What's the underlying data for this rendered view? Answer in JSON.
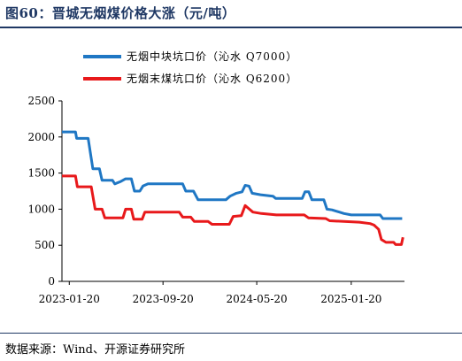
{
  "figure_title": "图60：晋城无烟煤价格大涨（元/吨）",
  "source_note": "数据来源：Wind、开源证券研究所",
  "colors": {
    "accent": "#1f3864",
    "series_blue": "#1f77c4",
    "series_red": "#e8191b"
  },
  "chart_data": {
    "type": "line",
    "title": "",
    "xlabel": "",
    "ylabel": "",
    "ylim": [
      0,
      2500
    ],
    "xlim": [
      "2023-01-01",
      "2025-06-07"
    ],
    "yticks": [
      0,
      500,
      1000,
      1500,
      2000,
      2500
    ],
    "xticks": [
      "2023-01-20",
      "2023-09-20",
      "2024-05-20",
      "2025-01-20"
    ],
    "grid": false,
    "legend_position": "top-right",
    "series": [
      {
        "name": "无烟中块坑口价（沁水 Q7000）",
        "color": "#1f77c4",
        "points": [
          [
            "2023-01-01",
            2070
          ],
          [
            "2023-02-05",
            2070
          ],
          [
            "2023-02-08",
            1980
          ],
          [
            "2023-03-10",
            1980
          ],
          [
            "2023-03-22",
            1560
          ],
          [
            "2023-04-08",
            1560
          ],
          [
            "2023-04-15",
            1400
          ],
          [
            "2023-05-12",
            1400
          ],
          [
            "2023-05-18",
            1350
          ],
          [
            "2023-06-01",
            1380
          ],
          [
            "2023-06-15",
            1420
          ],
          [
            "2023-06-30",
            1420
          ],
          [
            "2023-07-08",
            1250
          ],
          [
            "2023-07-22",
            1250
          ],
          [
            "2023-07-30",
            1320
          ],
          [
            "2023-08-12",
            1350
          ],
          [
            "2023-11-10",
            1350
          ],
          [
            "2023-11-18",
            1250
          ],
          [
            "2023-12-08",
            1250
          ],
          [
            "2023-12-20",
            1130
          ],
          [
            "2024-03-01",
            1130
          ],
          [
            "2024-03-12",
            1180
          ],
          [
            "2024-03-28",
            1220
          ],
          [
            "2024-04-12",
            1240
          ],
          [
            "2024-04-20",
            1330
          ],
          [
            "2024-04-30",
            1320
          ],
          [
            "2024-05-08",
            1220
          ],
          [
            "2024-05-30",
            1200
          ],
          [
            "2024-07-01",
            1180
          ],
          [
            "2024-07-08",
            1150
          ],
          [
            "2024-09-15",
            1150
          ],
          [
            "2024-09-22",
            1240
          ],
          [
            "2024-10-02",
            1240
          ],
          [
            "2024-10-10",
            1130
          ],
          [
            "2024-11-10",
            1130
          ],
          [
            "2024-11-18",
            1000
          ],
          [
            "2024-12-01",
            990
          ],
          [
            "2025-01-01",
            940
          ],
          [
            "2025-01-20",
            920
          ],
          [
            "2025-04-05",
            920
          ],
          [
            "2025-04-12",
            870
          ],
          [
            "2025-06-01",
            870
          ]
        ]
      },
      {
        "name": "无烟末煤坑口价（沁水 Q6200）",
        "color": "#e8191b",
        "points": [
          [
            "2023-01-01",
            1460
          ],
          [
            "2023-02-05",
            1460
          ],
          [
            "2023-02-10",
            1310
          ],
          [
            "2023-03-18",
            1310
          ],
          [
            "2023-03-28",
            1000
          ],
          [
            "2023-04-15",
            1000
          ],
          [
            "2023-04-22",
            880
          ],
          [
            "2023-06-08",
            880
          ],
          [
            "2023-06-15",
            1000
          ],
          [
            "2023-06-30",
            1000
          ],
          [
            "2023-07-06",
            860
          ],
          [
            "2023-07-28",
            860
          ],
          [
            "2023-08-04",
            960
          ],
          [
            "2023-10-05",
            960
          ],
          [
            "2023-11-01",
            960
          ],
          [
            "2023-11-10",
            890
          ],
          [
            "2023-12-01",
            890
          ],
          [
            "2023-12-10",
            830
          ],
          [
            "2024-01-15",
            830
          ],
          [
            "2024-01-25",
            790
          ],
          [
            "2024-03-10",
            790
          ],
          [
            "2024-03-20",
            900
          ],
          [
            "2024-04-10",
            910
          ],
          [
            "2024-04-20",
            1050
          ],
          [
            "2024-05-01",
            1000
          ],
          [
            "2024-05-10",
            960
          ],
          [
            "2024-06-01",
            940
          ],
          [
            "2024-07-10",
            920
          ],
          [
            "2024-09-20",
            920
          ],
          [
            "2024-10-01",
            880
          ],
          [
            "2024-11-15",
            870
          ],
          [
            "2024-11-25",
            840
          ],
          [
            "2025-02-10",
            820
          ],
          [
            "2025-03-10",
            800
          ],
          [
            "2025-03-20",
            780
          ],
          [
            "2025-04-01",
            720
          ],
          [
            "2025-04-08",
            580
          ],
          [
            "2025-04-20",
            540
          ],
          [
            "2025-05-10",
            540
          ],
          [
            "2025-05-15",
            510
          ],
          [
            "2025-05-30",
            510
          ],
          [
            "2025-06-03",
            610
          ]
        ]
      }
    ]
  }
}
